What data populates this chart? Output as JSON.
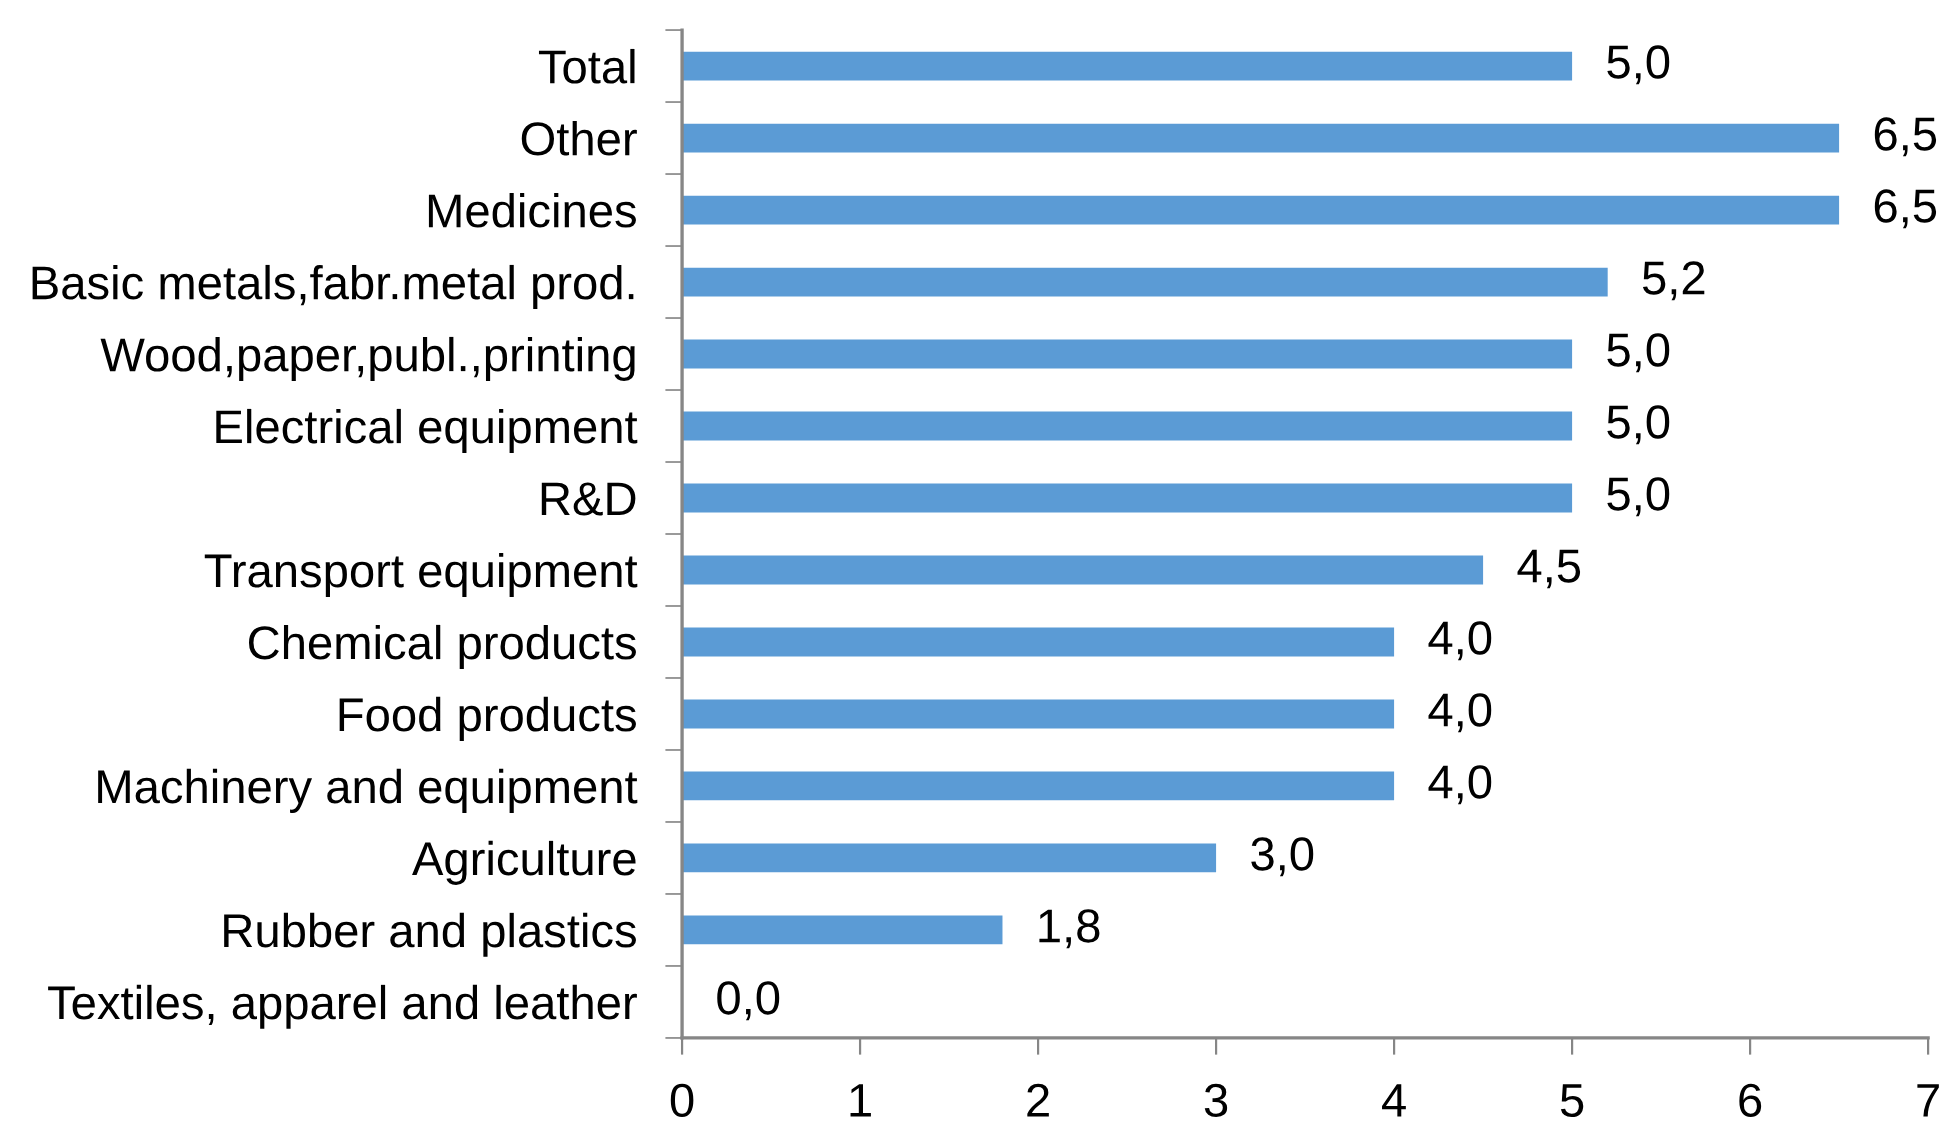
{
  "chart_data": {
    "type": "bar",
    "orientation": "horizontal",
    "color": "#5b9bd5",
    "categories": [
      "Total",
      "Other",
      "Medicines",
      "Basic metals,fabr.metal prod.",
      "Wood,paper,publ.,printing",
      "Electrical equipment",
      "R&D",
      "Transport equipment",
      "Chemical products",
      "Food products",
      "Machinery and equipment",
      "Agriculture",
      "Rubber and plastics",
      "Textiles, apparel and leather"
    ],
    "values": [
      5.0,
      6.5,
      6.5,
      5.2,
      5.0,
      5.0,
      5.0,
      4.5,
      4.0,
      4.0,
      4.0,
      3.0,
      1.8,
      0.0
    ],
    "value_labels": [
      "5,0",
      "6,5",
      "6,5",
      "5,2",
      "5,0",
      "5,0",
      "5,0",
      "4,5",
      "4,0",
      "4,0",
      "4,0",
      "3,0",
      "1,8",
      "0,0"
    ],
    "xlim": [
      0,
      7
    ],
    "xticks": [
      0,
      1,
      2,
      3,
      4,
      5,
      6,
      7
    ]
  }
}
